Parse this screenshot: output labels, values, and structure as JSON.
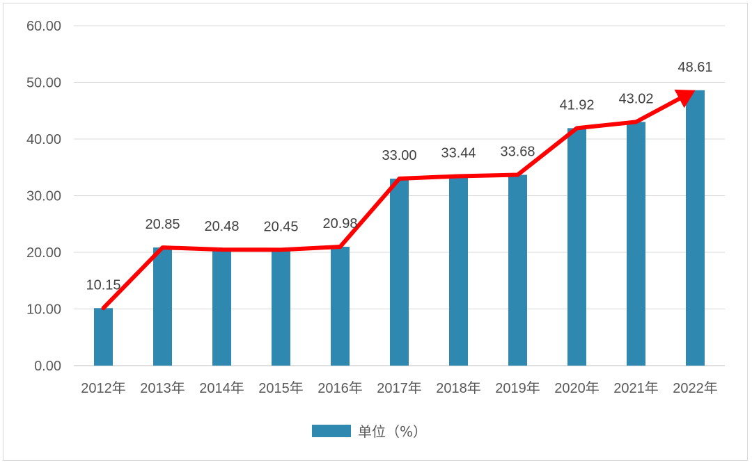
{
  "chart_data": {
    "type": "bar",
    "categories": [
      "2012年",
      "2013年",
      "2014年",
      "2015年",
      "2016年",
      "2017年",
      "2018年",
      "2019年",
      "2020年",
      "2021年",
      "2022年"
    ],
    "series": [
      {
        "name": "单位（%）",
        "values": [
          10.15,
          20.85,
          20.48,
          20.45,
          20.98,
          33.0,
          33.44,
          33.68,
          41.92,
          43.02,
          48.61
        ],
        "labels": [
          "10.15",
          "20.85",
          "20.48",
          "20.45",
          "20.98",
          "33.00",
          "33.44",
          "33.68",
          "41.92",
          "43.02",
          "48.61"
        ],
        "color": "#2e88b0"
      }
    ],
    "yticks": [
      "0.00",
      "10.00",
      "20.00",
      "30.00",
      "40.00",
      "50.00",
      "60.00"
    ],
    "ylim": [
      0,
      60
    ],
    "grid": true,
    "legend": "bottom",
    "trend_arrow": {
      "color": "#ff0000",
      "follows": "values"
    },
    "title": "",
    "xlabel": "",
    "ylabel": ""
  },
  "legend": {
    "label": "单位（%）",
    "color": "#2e88b0"
  }
}
